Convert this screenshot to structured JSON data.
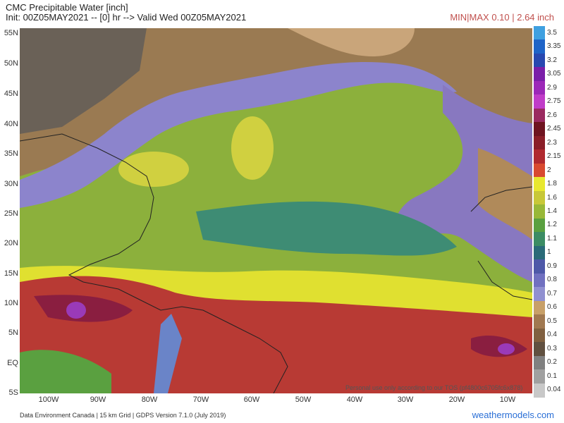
{
  "header": {
    "title": "CMC Precipitable Water [inch]",
    "init_line": "Init: 00Z05MAY2021 -- [0] hr --> Valid Wed 00Z05MAY2021",
    "minmax": "MIN|MAX 0.10 | 2.64 inch"
  },
  "axes": {
    "lat_labels": [
      "55N",
      "50N",
      "45N",
      "40N",
      "35N",
      "30N",
      "25N",
      "20N",
      "15N",
      "10N",
      "5N",
      "EQ",
      "5S"
    ],
    "lon_labels": [
      "100W",
      "90W",
      "80W",
      "70W",
      "60W",
      "50W",
      "40W",
      "30W",
      "20W",
      "10W"
    ]
  },
  "legend": {
    "labels": [
      "3.5",
      "3.35",
      "3.2",
      "3.05",
      "2.9",
      "2.75",
      "2.6",
      "2.45",
      "2.3",
      "2.15",
      "2",
      "1.8",
      "1.6",
      "1.4",
      "1.2",
      "1.1",
      "1",
      "0.9",
      "0.8",
      "0.7",
      "0.6",
      "0.5",
      "0.4",
      "0.3",
      "0.2",
      "0.1",
      "0.04"
    ],
    "colors": [
      "#3fa0e0",
      "#1e64c8",
      "#2848b0",
      "#7a1ea8",
      "#9c28b8",
      "#c03cc8",
      "#9a2a60",
      "#6e1420",
      "#8a1e28",
      "#b02a30",
      "#d84a30",
      "#e8e830",
      "#c8c838",
      "#98b838",
      "#5aa040",
      "#3c8c64",
      "#2a6a78",
      "#4e58a8",
      "#7070c0",
      "#9090d0",
      "#c8a068",
      "#a07850",
      "#806040",
      "#605040",
      "#808080",
      "#a0a0a0",
      "#c8c8c8"
    ]
  },
  "footer": {
    "credit": "Data Environment Canada | 15 km Grid | GDPS Version 7.1.0 (July 2019)",
    "brand": "weathermodels.com",
    "tos": "Personal use only according to our TOS (pf4800c6705fc6x878)"
  }
}
